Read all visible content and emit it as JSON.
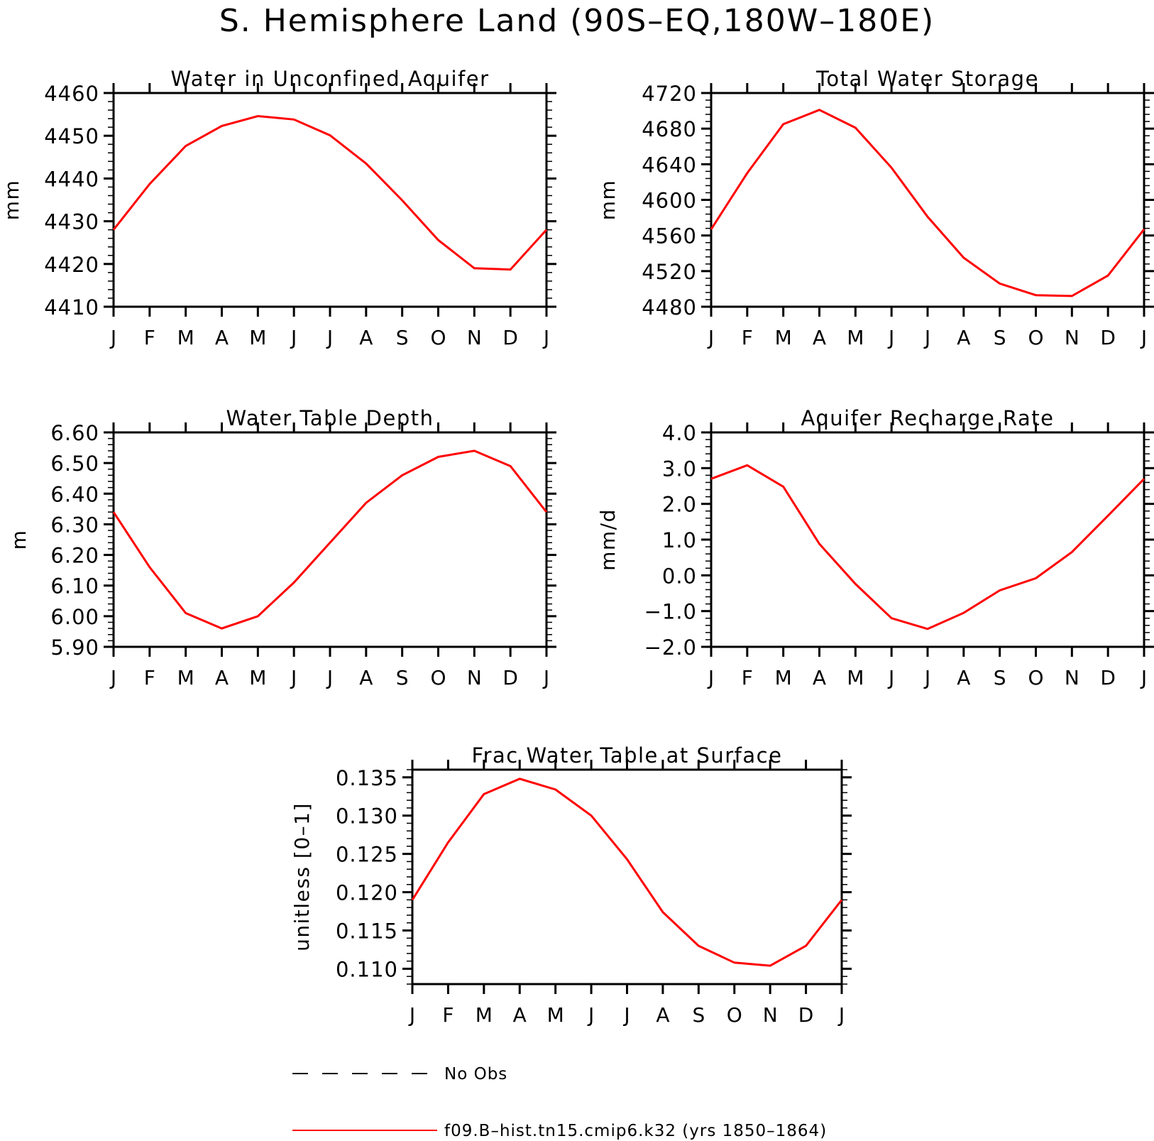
{
  "figure_title": "S. Hemisphere Land (90S–EQ,180W–180E)",
  "colors": {
    "model": "#ff0000",
    "axes": "#000000",
    "background": "#ffffff"
  },
  "legend": {
    "items": [
      {
        "label": "No Obs",
        "style": "dashed",
        "color": "#000000"
      },
      {
        "label": "f09.B–hist.tn15.cmip6.k32 (yrs 1850–1864)",
        "style": "solid",
        "color": "#ff0000"
      }
    ]
  },
  "chart_data": [
    {
      "type": "line",
      "title": "Water in Unconfined Aquifer",
      "ylabel": "mm",
      "xlabel": "",
      "x": [
        "J",
        "F",
        "M",
        "A",
        "M",
        "J",
        "J",
        "A",
        "S",
        "O",
        "N",
        "D",
        "J"
      ],
      "ylim": [
        4410,
        4460
      ],
      "yticks": [
        4410,
        4420,
        4430,
        4440,
        4450,
        4460
      ],
      "ytick_labels": [
        "4410",
        "4420",
        "4430",
        "4440",
        "4450",
        "4460"
      ],
      "series": [
        {
          "name": "f09.B–hist.tn15.cmip6.k32",
          "color": "#ff0000",
          "values": [
            4428.0,
            4438.7,
            4447.6,
            4452.3,
            4454.6,
            4453.8,
            4450.1,
            4443.5,
            4434.9,
            4425.6,
            4419.0,
            4418.7,
            4428.0
          ]
        }
      ]
    },
    {
      "type": "line",
      "title": "Total Water Storage",
      "ylabel": "mm",
      "xlabel": "",
      "x": [
        "J",
        "F",
        "M",
        "A",
        "M",
        "J",
        "J",
        "A",
        "S",
        "O",
        "N",
        "D",
        "J"
      ],
      "ylim": [
        4480,
        4720
      ],
      "yticks": [
        4480,
        4520,
        4560,
        4600,
        4640,
        4680,
        4720
      ],
      "ytick_labels": [
        "4480",
        "4520",
        "4560",
        "4600",
        "4640",
        "4680",
        "4720"
      ],
      "series": [
        {
          "name": "f09.B–hist.tn15.cmip6.k32",
          "color": "#ff0000",
          "values": [
            4567,
            4630,
            4685,
            4701,
            4681,
            4636,
            4581,
            4535,
            4506,
            4493,
            4492,
            4515,
            4567
          ]
        }
      ]
    },
    {
      "type": "line",
      "title": "Water Table Depth",
      "ylabel": "m",
      "xlabel": "",
      "x": [
        "J",
        "F",
        "M",
        "A",
        "M",
        "J",
        "J",
        "A",
        "S",
        "O",
        "N",
        "D",
        "J"
      ],
      "ylim": [
        5.9,
        6.6
      ],
      "yticks": [
        5.9,
        6.0,
        6.1,
        6.2,
        6.3,
        6.4,
        6.5,
        6.6
      ],
      "ytick_labels": [
        "5.90",
        "6.00",
        "6.10",
        "6.20",
        "6.30",
        "6.40",
        "6.50",
        "6.60"
      ],
      "series": [
        {
          "name": "f09.B–hist.tn15.cmip6.k32",
          "color": "#ff0000",
          "values": [
            6.34,
            6.16,
            6.01,
            5.96,
            6.0,
            6.11,
            6.24,
            6.37,
            6.46,
            6.52,
            6.54,
            6.49,
            6.34
          ]
        }
      ]
    },
    {
      "type": "line",
      "title": "Aquifer Recharge Rate",
      "ylabel": "mm/d",
      "xlabel": "",
      "x": [
        "J",
        "F",
        "M",
        "A",
        "M",
        "J",
        "J",
        "A",
        "S",
        "O",
        "N",
        "D",
        "J"
      ],
      "ylim": [
        -2.0,
        4.0
      ],
      "yticks": [
        -2.0,
        -1.0,
        0.0,
        1.0,
        2.0,
        3.0,
        4.0
      ],
      "ytick_labels": [
        "−2.0",
        "−1.0",
        "0.0",
        "1.0",
        "2.0",
        "3.0",
        "4.0"
      ],
      "series": [
        {
          "name": "f09.B–hist.tn15.cmip6.k32",
          "color": "#ff0000",
          "values": [
            2.7,
            3.08,
            2.48,
            0.88,
            -0.24,
            -1.2,
            -1.5,
            -1.05,
            -0.42,
            -0.08,
            0.65,
            1.67,
            2.7
          ]
        }
      ]
    },
    {
      "type": "line",
      "title": "Frac Water Table at Surface",
      "ylabel": "unitless [0–1]",
      "xlabel": "",
      "x": [
        "J",
        "F",
        "M",
        "A",
        "M",
        "J",
        "J",
        "A",
        "S",
        "O",
        "N",
        "D",
        "J"
      ],
      "ylim": [
        0.108,
        0.136
      ],
      "yticks": [
        0.11,
        0.115,
        0.12,
        0.125,
        0.13,
        0.135
      ],
      "ytick_labels": [
        "0.110",
        "0.115",
        "0.120",
        "0.125",
        "0.130",
        "0.135"
      ],
      "series": [
        {
          "name": "f09.B–hist.tn15.cmip6.k32",
          "color": "#ff0000",
          "values": [
            0.119,
            0.1265,
            0.1328,
            0.1348,
            0.1334,
            0.13,
            0.1243,
            0.1174,
            0.113,
            0.1108,
            0.1104,
            0.113,
            0.119
          ]
        }
      ]
    }
  ]
}
